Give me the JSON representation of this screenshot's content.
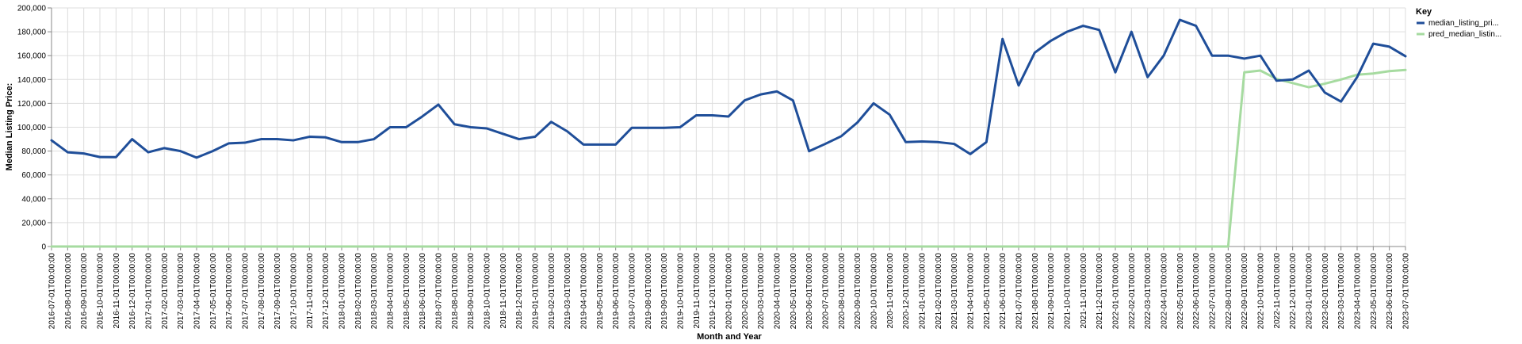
{
  "chart_data": {
    "type": "line",
    "xlabel": "Month and Year",
    "ylabel": "Median Listing Price:",
    "ylim": [
      0,
      200000
    ],
    "y_ticks": [
      "0",
      "20,000",
      "40,000",
      "60,000",
      "80,000",
      "100,000",
      "120,000",
      "140,000",
      "160,000",
      "180,000",
      "200,000"
    ],
    "y_tick_values": [
      0,
      20000,
      40000,
      60000,
      80000,
      100000,
      120000,
      140000,
      160000,
      180000,
      200000
    ],
    "grid": true,
    "legend": {
      "title": "Key",
      "position": "top-right"
    },
    "x": [
      "2016-07-01T00:00:00",
      "2016-08-01T00:00:00",
      "2016-09-01T00:00:00",
      "2016-10-01T00:00:00",
      "2016-11-01T00:00:00",
      "2016-12-01T00:00:00",
      "2017-01-01T00:00:00",
      "2017-02-01T00:00:00",
      "2017-03-01T00:00:00",
      "2017-04-01T00:00:00",
      "2017-05-01T00:00:00",
      "2017-06-01T00:00:00",
      "2017-07-01T00:00:00",
      "2017-08-01T00:00:00",
      "2017-09-01T00:00:00",
      "2017-10-01T00:00:00",
      "2017-11-01T00:00:00",
      "2017-12-01T00:00:00",
      "2018-01-01T00:00:00",
      "2018-02-01T00:00:00",
      "2018-03-01T00:00:00",
      "2018-04-01T00:00:00",
      "2018-05-01T00:00:00",
      "2018-06-01T00:00:00",
      "2018-07-01T00:00:00",
      "2018-08-01T00:00:00",
      "2018-09-01T00:00:00",
      "2018-10-01T00:00:00",
      "2018-11-01T00:00:00",
      "2018-12-01T00:00:00",
      "2019-01-01T00:00:00",
      "2019-02-01T00:00:00",
      "2019-03-01T00:00:00",
      "2019-04-01T00:00:00",
      "2019-05-01T00:00:00",
      "2019-06-01T00:00:00",
      "2019-07-01T00:00:00",
      "2019-08-01T00:00:00",
      "2019-09-01T00:00:00",
      "2019-10-01T00:00:00",
      "2019-11-01T00:00:00",
      "2019-12-01T00:00:00",
      "2020-01-01T00:00:00",
      "2020-02-01T00:00:00",
      "2020-03-01T00:00:00",
      "2020-04-01T00:00:00",
      "2020-05-01T00:00:00",
      "2020-06-01T00:00:00",
      "2020-07-01T00:00:00",
      "2020-08-01T00:00:00",
      "2020-09-01T00:00:00",
      "2020-10-01T00:00:00",
      "2020-11-01T00:00:00",
      "2020-12-01T00:00:00",
      "2021-01-01T00:00:00",
      "2021-02-01T00:00:00",
      "2021-03-01T00:00:00",
      "2021-04-01T00:00:00",
      "2021-05-01T00:00:00",
      "2021-06-01T00:00:00",
      "2021-07-01T00:00:00",
      "2021-08-01T00:00:00",
      "2021-09-01T00:00:00",
      "2021-10-01T00:00:00",
      "2021-11-01T00:00:00",
      "2021-12-01T00:00:00",
      "2022-01-01T00:00:00",
      "2022-02-01T00:00:00",
      "2022-03-01T00:00:00",
      "2022-04-01T00:00:00",
      "2022-05-01T00:00:00",
      "2022-06-01T00:00:00",
      "2022-07-01T00:00:00",
      "2022-08-01T00:00:00",
      "2022-09-01T00:00:00",
      "2022-10-01T00:00:00",
      "2022-11-01T00:00:00",
      "2022-12-01T00:00:00",
      "2023-01-01T00:00:00",
      "2023-02-01T00:00:00",
      "2023-03-01T00:00:00",
      "2023-04-01T00:00:00",
      "2023-05-01T00:00:00",
      "2023-06-01T00:00:00",
      "2023-07-01T00:00:00"
    ],
    "series": [
      {
        "name": "median_listing_pri...",
        "color": "#1f4e99",
        "values": [
          89000,
          79000,
          78000,
          75000,
          74900,
          90000,
          79000,
          82500,
          80000,
          74500,
          80000,
          86500,
          87000,
          90000,
          90000,
          89000,
          92000,
          91500,
          87500,
          87500,
          90000,
          100000,
          100000,
          109000,
          119000,
          102500,
          100000,
          99000,
          94500,
          90000,
          92000,
          104500,
          96500,
          85500,
          85500,
          85500,
          99500,
          99500,
          99500,
          100000,
          110000,
          110000,
          109000,
          122500,
          127500,
          130000,
          122500,
          79900,
          86000,
          92500,
          104000,
          120000,
          110500,
          87500,
          88000,
          87500,
          86000,
          77500,
          87500,
          174000,
          135000,
          162500,
          172500,
          180000,
          185000,
          181500,
          146000,
          180000,
          142000,
          160000,
          190000,
          185000,
          160000,
          160000,
          157500,
          160000,
          139000,
          140000,
          147500,
          129000,
          121500,
          142000,
          170000,
          167500,
          159500
        ]
      },
      {
        "name": "pred_median_listin...",
        "color": "#a6dba0",
        "values": [
          0,
          0,
          0,
          0,
          0,
          0,
          0,
          0,
          0,
          0,
          0,
          0,
          0,
          0,
          0,
          0,
          0,
          0,
          0,
          0,
          0,
          0,
          0,
          0,
          0,
          0,
          0,
          0,
          0,
          0,
          0,
          0,
          0,
          0,
          0,
          0,
          0,
          0,
          0,
          0,
          0,
          0,
          0,
          0,
          0,
          0,
          0,
          0,
          0,
          0,
          0,
          0,
          0,
          0,
          0,
          0,
          0,
          0,
          0,
          0,
          0,
          0,
          0,
          0,
          0,
          0,
          0,
          0,
          0,
          0,
          0,
          0,
          0,
          0,
          146000,
          147500,
          140500,
          137000,
          133500,
          136500,
          140000,
          144000,
          145000,
          147000,
          148000
        ]
      }
    ]
  }
}
